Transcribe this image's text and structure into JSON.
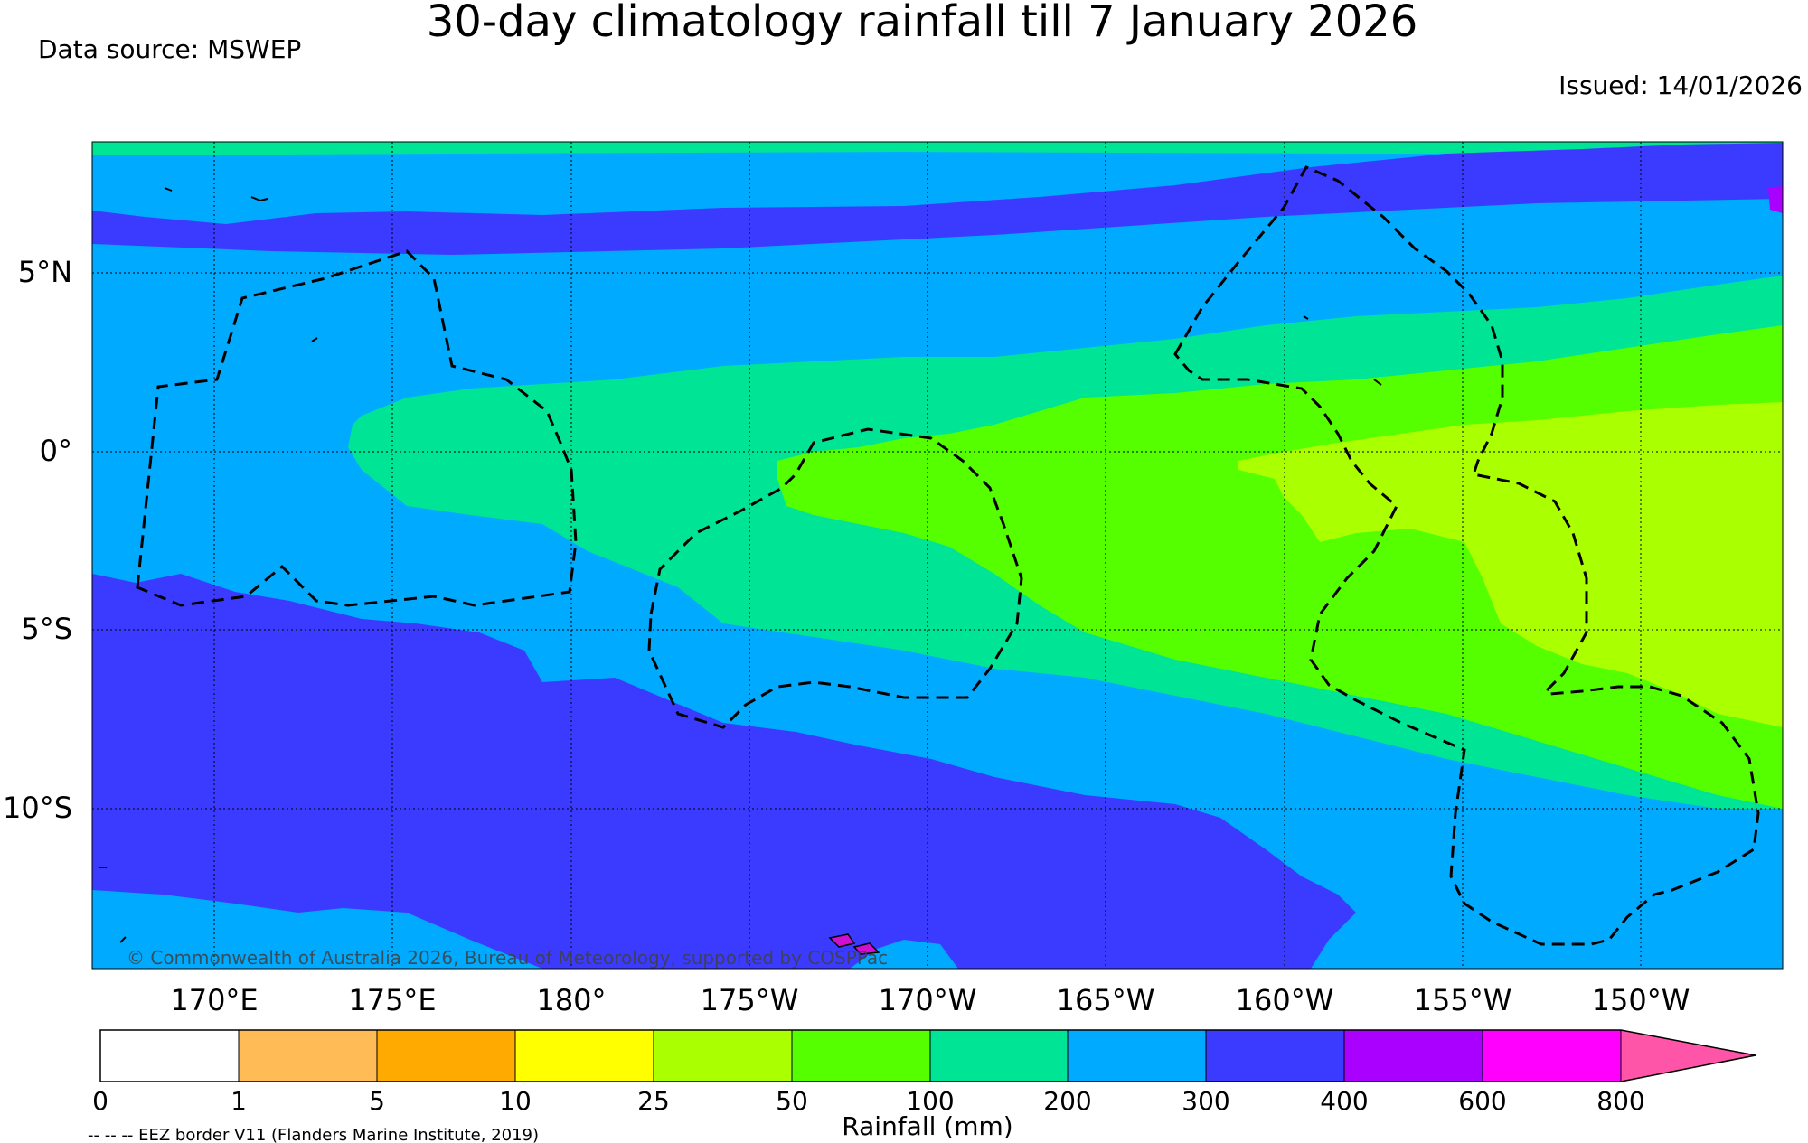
{
  "title": "30-day climatology rainfall till 7 January 2026",
  "data_source": "Data source: MSWEP",
  "issued": "Issued: 14/01/2026",
  "copyright": "© Commonwealth of Australia 2026, Bureau of Meteorology, supported by COSPPac",
  "eez_note": "-- -- -- EEZ border V11 (Flanders Marine Institute, 2019)",
  "map": {
    "lon_labels": [
      "170°E",
      "175°E",
      "180°",
      "175°W",
      "170°W",
      "165°W",
      "160°W",
      "155°W",
      "150°W"
    ],
    "lat_labels": [
      "5°N",
      "0°",
      "5°S",
      "10°S"
    ]
  },
  "colorbar": {
    "label": "Rainfall (mm)",
    "ticks": [
      "0",
      "1",
      "5",
      "10",
      "25",
      "50",
      "100",
      "200",
      "300",
      "400",
      "600",
      "800"
    ],
    "colors": [
      "#ffffff",
      "#ffbb55",
      "#ffaa00",
      "#ffff00",
      "#aaff00",
      "#55ff00",
      "#00e595",
      "#00aaff",
      "#3b3bff",
      "#aa00ff",
      "#ff00ff",
      "#ff55a9"
    ]
  }
}
